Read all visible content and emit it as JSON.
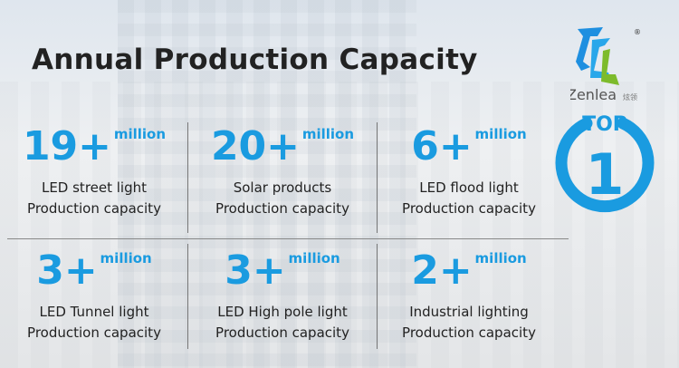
{
  "title": "Annual Production Capacity",
  "brand": {
    "name": "Zenlea",
    "chinese": "炫领",
    "registered": "®"
  },
  "badge": {
    "top": "TOP",
    "rank": "1"
  },
  "accent": "#1a9be0",
  "cells": [
    {
      "value": "19+",
      "unit": "million",
      "label": "LED street light",
      "sub": "Production capacity"
    },
    {
      "value": "20+",
      "unit": "million",
      "label": "Solar products",
      "sub": "Production capacity"
    },
    {
      "value": "6+",
      "unit": "million",
      "label": "LED flood light",
      "sub": "Production capacity"
    },
    {
      "value": "3+",
      "unit": "million",
      "label": "LED Tunnel light",
      "sub": "Production capacity"
    },
    {
      "value": "3+",
      "unit": "million",
      "label": "LED High pole light",
      "sub": "Production capacity"
    },
    {
      "value": "2+",
      "unit": "million",
      "label": "Industrial lighting",
      "sub": "Production capacity"
    }
  ]
}
